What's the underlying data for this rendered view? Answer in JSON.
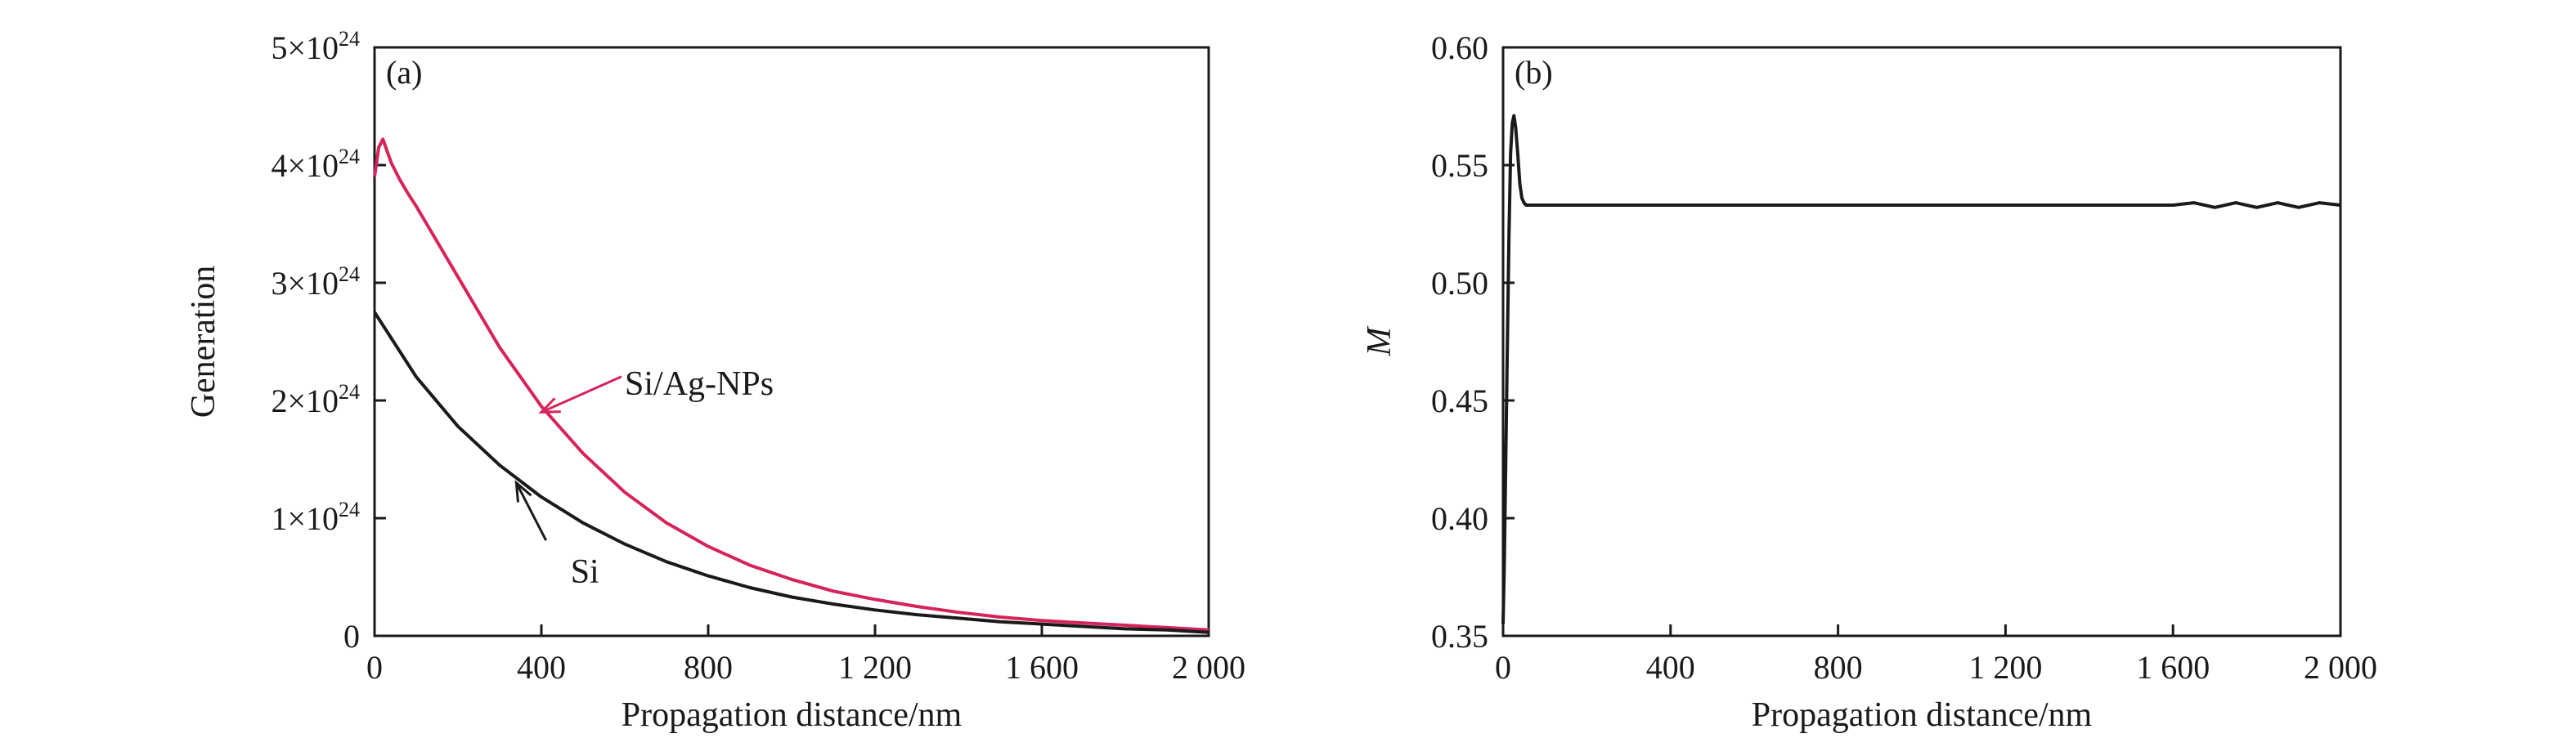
{
  "chart_data": [
    {
      "type": "line",
      "panel_label": "(a)",
      "xlabel": "Propagation distance/nm",
      "ylabel": "Generation",
      "xlim": [
        0,
        2000
      ],
      "ylim": [
        0,
        5e+24
      ],
      "x_ticks": [
        0,
        400,
        800,
        1200,
        1600,
        2000
      ],
      "x_tick_labels": [
        "0",
        "400",
        "800",
        "1 200",
        "1 600",
        "2 000"
      ],
      "y_ticks": [
        0,
        1e+24,
        2e+24,
        3e+24,
        4e+24,
        5e+24
      ],
      "y_tick_labels": [
        {
          "base": "0",
          "exp": ""
        },
        {
          "base": "1×10",
          "exp": "24"
        },
        {
          "base": "2×10",
          "exp": "24"
        },
        {
          "base": "3×10",
          "exp": "24"
        },
        {
          "base": "4×10",
          "exp": "24"
        },
        {
          "base": "5×10",
          "exp": "24"
        }
      ],
      "series": [
        {
          "name": "Si/Ag-NPs",
          "color": "#d6245a",
          "x": [
            0,
            10,
            20,
            30,
            40,
            60,
            80,
            100,
            150,
            200,
            300,
            400,
            500,
            600,
            700,
            800,
            900,
            1000,
            1100,
            1200,
            1300,
            1400,
            1500,
            1600,
            1700,
            1800,
            1900,
            2000
          ],
          "values": [
            3.9e+24,
            4.15e+24,
            4.22e+24,
            4.12e+24,
            4.02e+24,
            3.88e+24,
            3.76e+24,
            3.65e+24,
            3.35e+24,
            3.05e+24,
            2.45e+24,
            1.95e+24,
            1.55e+24,
            1.22e+24,
            9.6e+23,
            7.6e+23,
            6e+23,
            4.8e+23,
            3.8e+23,
            3.1e+23,
            2.5e+23,
            2e+23,
            1.6e+23,
            1.3e+23,
            1.1e+23,
            9e+22,
            7e+22,
            5e+22
          ]
        },
        {
          "name": "Si",
          "color": "#1a1a1a",
          "x": [
            0,
            100,
            200,
            300,
            400,
            500,
            600,
            700,
            800,
            900,
            1000,
            1100,
            1200,
            1300,
            1400,
            1500,
            1600,
            1700,
            1800,
            1900,
            2000
          ],
          "values": [
            2.75e+24,
            2.2e+24,
            1.78e+24,
            1.45e+24,
            1.18e+24,
            9.6e+23,
            7.8e+23,
            6.3e+23,
            5.1e+23,
            4.1e+23,
            3.3e+23,
            2.7e+23,
            2.2e+23,
            1.8e+23,
            1.5e+23,
            1.2e+23,
            1e+23,
            8e+22,
            6e+22,
            5e+22,
            3e+22
          ]
        }
      ],
      "annotations": [
        {
          "text": "Si/Ag-NPs",
          "color": "#d6245a",
          "text_at": [
            600,
            2.05e+24
          ],
          "arrow_to": [
            400,
            1.9e+24
          ]
        },
        {
          "text": "Si",
          "color": "#1a1a1a",
          "text_at": [
            470,
            4.5e+23
          ],
          "arrow_to": [
            340,
            1.3e+24
          ]
        }
      ]
    },
    {
      "type": "line",
      "panel_label": "(b)",
      "xlabel": "Propagation distance/nm",
      "ylabel": "M",
      "xlim": [
        0,
        2000
      ],
      "ylim": [
        0.35,
        0.6
      ],
      "x_ticks": [
        0,
        400,
        800,
        1200,
        1600,
        2000
      ],
      "x_tick_labels": [
        "0",
        "400",
        "800",
        "1 200",
        "1 600",
        "2 000"
      ],
      "y_ticks": [
        0.35,
        0.4,
        0.45,
        0.5,
        0.55,
        0.6
      ],
      "y_tick_labels": [
        "0.35",
        "0.40",
        "0.45",
        "0.50",
        "0.55",
        "0.60"
      ],
      "series": [
        {
          "name": "",
          "color": "#1a1a1a",
          "x": [
            0,
            3,
            6,
            10,
            14,
            18,
            22,
            26,
            30,
            35,
            40,
            45,
            50,
            55,
            60,
            70,
            100,
            200,
            400,
            800,
            1200,
            1500,
            1600,
            1650,
            1700,
            1750,
            1800,
            1850,
            1900,
            1950,
            2000
          ],
          "values": [
            0.355,
            0.38,
            0.42,
            0.47,
            0.52,
            0.555,
            0.568,
            0.571,
            0.566,
            0.555,
            0.542,
            0.536,
            0.534,
            0.533,
            0.533,
            0.533,
            0.533,
            0.533,
            0.533,
            0.533,
            0.533,
            0.533,
            0.533,
            0.534,
            0.532,
            0.534,
            0.532,
            0.534,
            0.532,
            0.534,
            0.533
          ]
        }
      ]
    }
  ]
}
